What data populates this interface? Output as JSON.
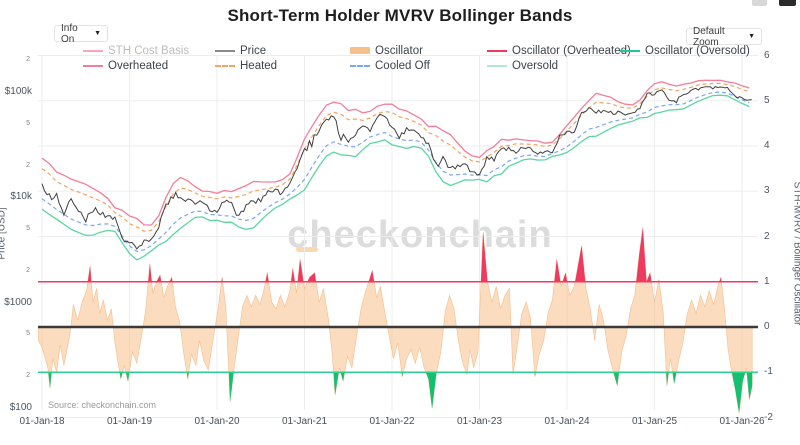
{
  "header": {
    "title": "Short-Term Holder MVRV Bollinger Bands",
    "info_label": "Info On",
    "zoom_label": "Default Zoom",
    "caret": "▼"
  },
  "watermark": {
    "text": "checkonchain"
  },
  "source": {
    "text": "Source: checkonchain.com"
  },
  "axes": {
    "left_title": "Price [USD]",
    "right_title": "STH-MVRV / Bollinger Oscillator"
  },
  "colors": {
    "spike_red": "#ee3a60",
    "line_green": "#2bd18d",
    "spike_green": "#12c070",
    "peach_fill": "#f7c08a",
    "peach_edge": "#f3b379",
    "band_pink": "#f57d99",
    "band_orange": "#f2a55e",
    "band_blue": "#7aa8ee",
    "band_green": "#5bd6a2",
    "price": "#3f3f3f",
    "zero_line": "#3a3a3a",
    "grid": "#ededed",
    "cost_basis_pink": "#f8a6b8",
    "price_legend_gray": "#8a8a8a",
    "oversold_pale": "#aee8d0",
    "disabled_text": "#bcbcbc"
  },
  "legend": {
    "items": [
      {
        "slug": "sth-cost-basis",
        "label": "STH Cost Basis",
        "col": 0,
        "row": 0,
        "kind": "line",
        "color": "#f8a6b8",
        "text": "#bcbcbc"
      },
      {
        "slug": "price",
        "label": "Price",
        "col": 1,
        "row": 0,
        "kind": "line",
        "color": "#8a8a8a",
        "text": "#3d444c"
      },
      {
        "slug": "oscillator",
        "label": "Oscillator",
        "col": 2,
        "row": 0,
        "kind": "bar",
        "color": "#f7c08a",
        "text": "#3d444c"
      },
      {
        "slug": "oscillator-overheated",
        "label": "Oscillator (Overheated)",
        "col": 3,
        "row": 0,
        "kind": "line",
        "color": "#ee3a60",
        "text": "#3d444c"
      },
      {
        "slug": "oscillator-oversold",
        "label": "Oscillator (Oversold)",
        "col": 4,
        "row": 0,
        "kind": "line",
        "color": "#22c98a",
        "text": "#3d444c"
      },
      {
        "slug": "overheated",
        "label": "Overheated",
        "col": 0,
        "row": 1,
        "kind": "line",
        "color": "#f57d99",
        "text": "#3d444c"
      },
      {
        "slug": "heated",
        "label": "Heated",
        "col": 1,
        "row": 1,
        "kind": "dash",
        "color": "#f2a55e",
        "text": "#3d444c"
      },
      {
        "slug": "cooled-off",
        "label": "Cooled Off",
        "col": 2,
        "row": 1,
        "kind": "dash",
        "color": "#7aa8ee",
        "text": "#3d444c"
      },
      {
        "slug": "oversold",
        "label": "Oversold",
        "col": 3,
        "row": 1,
        "kind": "line",
        "color": "#aee8d0",
        "text": "#3d444c"
      }
    ]
  },
  "chart_data": {
    "type": "line",
    "title": "Short-Term Holder MVRV Bollinger Bands",
    "x_axis": {
      "unit": "months since 2018-01-01",
      "tick_months": [
        0,
        12,
        24,
        36,
        48,
        60,
        72,
        84,
        96
      ],
      "tick_labels": [
        "01-Jan-18",
        "01-Jan-19",
        "01-Jan-20",
        "01-Jan-21",
        "01-Jan-22",
        "01-Jan-23",
        "01-Jan-24",
        "01-Jan-25",
        "01-Jan-26"
      ]
    },
    "y_left": {
      "label": "Price [USD]",
      "scale": "log",
      "range": [
        100,
        225000
      ],
      "major_ticks": [
        {
          "v": 100000,
          "l": "$100k"
        },
        {
          "v": 10000,
          "l": "$10k"
        },
        {
          "v": 1000,
          "l": "$1000"
        },
        {
          "v": 100,
          "l": "$100"
        }
      ],
      "minor_ticks": [
        {
          "v": 200000,
          "l": "2"
        },
        {
          "v": 50000,
          "l": "5"
        },
        {
          "v": 20000,
          "l": "2"
        },
        {
          "v": 5000,
          "l": "5"
        },
        {
          "v": 2000,
          "l": "2"
        },
        {
          "v": 500,
          "l": "5"
        },
        {
          "v": 200,
          "l": "2"
        }
      ]
    },
    "y_right": {
      "label": "STH-MVRV / Bollinger Oscillator",
      "scale": "linear",
      "range": [
        -2.1,
        6.05
      ],
      "ticks": [
        6,
        5,
        4,
        3,
        2,
        1,
        0,
        -1,
        -2
      ]
    },
    "thresholds": {
      "overheated": 1,
      "zero": 0,
      "oversold": -1
    },
    "series": {
      "price_monthly": [
        13500,
        10200,
        10300,
        6900,
        9200,
        7500,
        6400,
        7700,
        7000,
        6600,
        6300,
        4000,
        3700,
        3400,
        3850,
        4100,
        5300,
        8550,
        10800,
        10000,
        9600,
        8300,
        9150,
        7550,
        7200,
        9350,
        8550,
        6450,
        8650,
        9450,
        9150,
        11350,
        11650,
        10800,
        13800,
        19700,
        29000,
        33100,
        45200,
        58800,
        57800,
        37300,
        35000,
        41500,
        47100,
        43800,
        61300,
        57000,
        46200,
        38500,
        43200,
        45500,
        37600,
        31800,
        19900,
        23300,
        20050,
        19400,
        20500,
        17150,
        16550,
        23100,
        23150,
        28500,
        29250,
        27200,
        30450,
        29250,
        26000,
        26950,
        27000,
        37700,
        42300,
        42600,
        61500,
        71300,
        60600,
        67500,
        62700,
        64600,
        59100,
        63300,
        70200,
        96400,
        94400,
        102100,
        84400,
        82500,
        94200,
        104600,
        107200,
        115800,
        108200,
        114000,
        110100,
        91500,
        88500,
        84500
      ],
      "oscillator": [
        [
          -0.5,
          -0.3
        ],
        [
          0,
          -0.45
        ],
        [
          0.8,
          -0.9
        ],
        [
          1.1,
          -1.35
        ],
        [
          1.5,
          -0.7
        ],
        [
          2,
          -1.0
        ],
        [
          2.5,
          -0.4
        ],
        [
          3,
          -0.85
        ],
        [
          3.8,
          -0.2
        ],
        [
          4.3,
          0.5
        ],
        [
          4.9,
          0.15
        ],
        [
          5.5,
          0.55
        ],
        [
          6.1,
          0.8
        ],
        [
          6.6,
          1.35
        ],
        [
          7,
          0.55
        ],
        [
          7.5,
          0.85
        ],
        [
          7.9,
          0.3
        ],
        [
          8.4,
          0.6
        ],
        [
          9,
          0.15
        ],
        [
          9.5,
          0.4
        ],
        [
          10,
          -0.35
        ],
        [
          10.4,
          -0.75
        ],
        [
          10.8,
          -1.15
        ],
        [
          11.3,
          -0.85
        ],
        [
          11.8,
          -1.2
        ],
        [
          12.4,
          -0.55
        ],
        [
          13,
          -0.8
        ],
        [
          13.6,
          -0.25
        ],
        [
          14.2,
          0.35
        ],
        [
          14.8,
          1.4
        ],
        [
          15.2,
          0.75
        ],
        [
          15.7,
          1.0
        ],
        [
          16.2,
          1.15
        ],
        [
          16.7,
          0.65
        ],
        [
          17.2,
          0.9
        ],
        [
          17.8,
          1.1
        ],
        [
          18.3,
          0.45
        ],
        [
          18.9,
          0.1
        ],
        [
          19.4,
          -0.55
        ],
        [
          20,
          -1.15
        ],
        [
          20.5,
          -0.6
        ],
        [
          21.1,
          -0.85
        ],
        [
          21.6,
          -0.3
        ],
        [
          22.2,
          -0.75
        ],
        [
          22.8,
          -0.95
        ],
        [
          23.4,
          -0.35
        ],
        [
          24.1,
          0.35
        ],
        [
          24.7,
          1.1
        ],
        [
          25.2,
          0.45
        ],
        [
          25.8,
          -1.65
        ],
        [
          26.4,
          -0.85
        ],
        [
          26.9,
          -0.25
        ],
        [
          27.5,
          0.45
        ],
        [
          28.1,
          0.7
        ],
        [
          28.7,
          0.45
        ],
        [
          29.3,
          0.7
        ],
        [
          29.9,
          0.5
        ],
        [
          30.4,
          0.8
        ],
        [
          30.9,
          1.2
        ],
        [
          31.5,
          0.55
        ],
        [
          32.1,
          0.4
        ],
        [
          32.7,
          0.7
        ],
        [
          33.3,
          0.45
        ],
        [
          34,
          0.8
        ],
        [
          34.4,
          1.3
        ],
        [
          34.9,
          0.75
        ],
        [
          35.4,
          1.5
        ],
        [
          36,
          0.85
        ],
        [
          36.7,
          1.1
        ],
        [
          37.4,
          1.2
        ],
        [
          38,
          0.55
        ],
        [
          38.6,
          0.85
        ],
        [
          39.3,
          0.15
        ],
        [
          39.8,
          -0.6
        ],
        [
          40.2,
          -1.5
        ],
        [
          40.8,
          -0.9
        ],
        [
          41.3,
          -1.2
        ],
        [
          41.9,
          -0.65
        ],
        [
          42.5,
          -0.9
        ],
        [
          43.1,
          -0.25
        ],
        [
          43.8,
          0.45
        ],
        [
          44.4,
          0.8
        ],
        [
          45.3,
          1.25
        ],
        [
          45.9,
          0.65
        ],
        [
          46.4,
          0.9
        ],
        [
          47,
          0.35
        ],
        [
          47.6,
          -0.2
        ],
        [
          48.2,
          -0.7
        ],
        [
          48.8,
          -0.35
        ],
        [
          49.4,
          -1.1
        ],
        [
          50,
          -0.7
        ],
        [
          50.6,
          -0.5
        ],
        [
          51.2,
          -0.8
        ],
        [
          51.8,
          -0.45
        ],
        [
          52.4,
          -0.9
        ],
        [
          53,
          -1.15
        ],
        [
          53.5,
          -1.8
        ],
        [
          54.1,
          -1.0
        ],
        [
          54.7,
          -0.55
        ],
        [
          55.3,
          0.35
        ],
        [
          55.9,
          0.7
        ],
        [
          56.5,
          0.4
        ],
        [
          57.1,
          -0.3
        ],
        [
          57.7,
          -0.8
        ],
        [
          58.3,
          -1.05
        ],
        [
          58.7,
          -0.5
        ],
        [
          59.2,
          -0.9
        ],
        [
          59.8,
          -0.55
        ],
        [
          60.5,
          2.1
        ],
        [
          61.1,
          1.0
        ],
        [
          61.7,
          0.55
        ],
        [
          62.3,
          0.9
        ],
        [
          62.9,
          0.4
        ],
        [
          63.5,
          0.7
        ],
        [
          64.1,
          0.85
        ],
        [
          64.6,
          -1.05
        ],
        [
          65.2,
          -0.4
        ],
        [
          65.8,
          0.3
        ],
        [
          66.4,
          0.55
        ],
        [
          67,
          0.2
        ],
        [
          67.6,
          -1.1
        ],
        [
          68.2,
          -0.6
        ],
        [
          68.8,
          -0.3
        ],
        [
          69.4,
          0.3
        ],
        [
          70,
          0.6
        ],
        [
          70.6,
          1.5
        ],
        [
          71.2,
          0.9
        ],
        [
          71.8,
          1.2
        ],
        [
          72.4,
          0.7
        ],
        [
          73,
          0.9
        ],
        [
          74,
          1.8
        ],
        [
          74.6,
          0.85
        ],
        [
          75.2,
          0.4
        ],
        [
          75.8,
          -0.3
        ],
        [
          76.4,
          0.5
        ],
        [
          77,
          0.15
        ],
        [
          77.6,
          -0.5
        ],
        [
          78.2,
          -0.9
        ],
        [
          78.9,
          -1.3
        ],
        [
          79.5,
          -0.55
        ],
        [
          80.1,
          -0.2
        ],
        [
          80.7,
          0.4
        ],
        [
          81.3,
          0.7
        ],
        [
          81.9,
          1.6
        ],
        [
          82.4,
          2.2
        ],
        [
          82.9,
          1.0
        ],
        [
          83.4,
          1.2
        ],
        [
          84,
          0.55
        ],
        [
          84.6,
          1.05
        ],
        [
          85.2,
          0.3
        ],
        [
          85.7,
          -1.3
        ],
        [
          86.2,
          -0.7
        ],
        [
          86.7,
          -1.25
        ],
        [
          87.3,
          -0.75
        ],
        [
          87.9,
          -0.35
        ],
        [
          88.5,
          0.3
        ],
        [
          89.1,
          0.6
        ],
        [
          89.7,
          0.3
        ],
        [
          90.3,
          0.7
        ],
        [
          90.9,
          0.45
        ],
        [
          91.5,
          0.8
        ],
        [
          92.1,
          0.5
        ],
        [
          92.7,
          0.9
        ],
        [
          93.1,
          1.1
        ],
        [
          93.6,
          0.4
        ],
        [
          94.1,
          -0.5
        ],
        [
          94.6,
          -1.0
        ],
        [
          95.1,
          -1.4
        ],
        [
          95.6,
          -1.9
        ],
        [
          96.1,
          -1.2
        ],
        [
          96.6,
          -0.9
        ],
        [
          97,
          -1.6
        ],
        [
          97.4,
          -1.3
        ]
      ]
    },
    "band_model": {
      "note": "Bollinger bands drawn around smoothed basis of price (visual approximation)",
      "ema_alpha": 0.5,
      "vol_mult": 2.2,
      "w_min": 0.06,
      "w_max": 0.22,
      "outer": 1.1,
      "inner": 0.65
    },
    "legend_position": "top-horizontal",
    "grid": true
  }
}
